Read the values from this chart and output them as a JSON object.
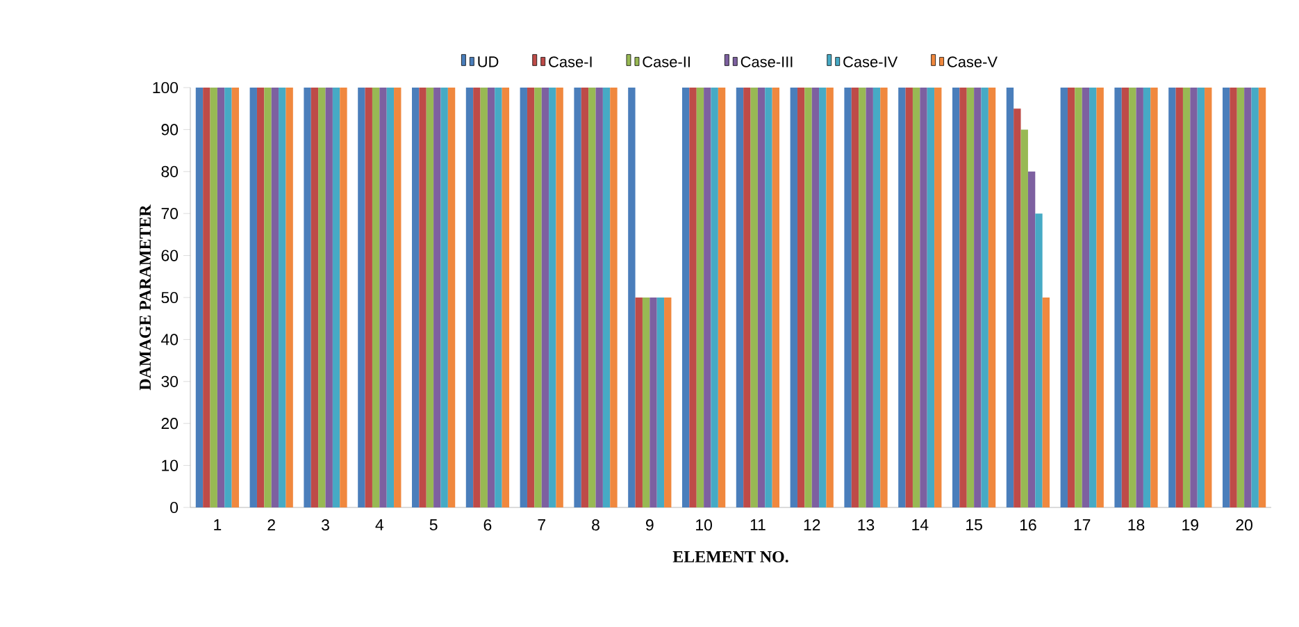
{
  "chart_data": {
    "type": "bar",
    "xlabel": "ELEMENT NO.",
    "ylabel": "DAMAGE PARAMETER",
    "categories": [
      "1",
      "2",
      "3",
      "4",
      "5",
      "6",
      "7",
      "8",
      "9",
      "10",
      "11",
      "12",
      "13",
      "14",
      "15",
      "16",
      "17",
      "18",
      "19",
      "20"
    ],
    "series": [
      {
        "name": "UD",
        "color": "#4a7ebb",
        "values": [
          100,
          100,
          100,
          100,
          100,
          100,
          100,
          100,
          100,
          100,
          100,
          100,
          100,
          100,
          100,
          100,
          100,
          100,
          100,
          100
        ]
      },
      {
        "name": "Case-I",
        "color": "#be4b48",
        "values": [
          100,
          100,
          100,
          100,
          100,
          100,
          100,
          100,
          50,
          100,
          100,
          100,
          100,
          100,
          100,
          95,
          100,
          100,
          100,
          100
        ]
      },
      {
        "name": "Case-II",
        "color": "#98b954",
        "values": [
          100,
          100,
          100,
          100,
          100,
          100,
          100,
          100,
          50,
          100,
          100,
          100,
          100,
          100,
          100,
          90,
          100,
          100,
          100,
          100
        ]
      },
      {
        "name": "Case-III",
        "color": "#7d60a0",
        "values": [
          100,
          100,
          100,
          100,
          100,
          100,
          100,
          100,
          50,
          100,
          100,
          100,
          100,
          100,
          100,
          80,
          100,
          100,
          100,
          100
        ]
      },
      {
        "name": "Case-IV",
        "color": "#46aac5",
        "values": [
          100,
          100,
          100,
          100,
          100,
          100,
          100,
          100,
          50,
          100,
          100,
          100,
          100,
          100,
          100,
          70,
          100,
          100,
          100,
          100
        ]
      },
      {
        "name": "Case-V",
        "color": "#f0883e",
        "values": [
          100,
          100,
          100,
          100,
          100,
          100,
          100,
          100,
          50,
          100,
          100,
          100,
          100,
          100,
          100,
          50,
          100,
          100,
          100,
          100
        ]
      }
    ],
    "ylim": [
      0,
      100
    ],
    "yticks": [
      0,
      10,
      20,
      30,
      40,
      50,
      60,
      70,
      80,
      90,
      100
    ],
    "grid": false,
    "legend": "top"
  }
}
